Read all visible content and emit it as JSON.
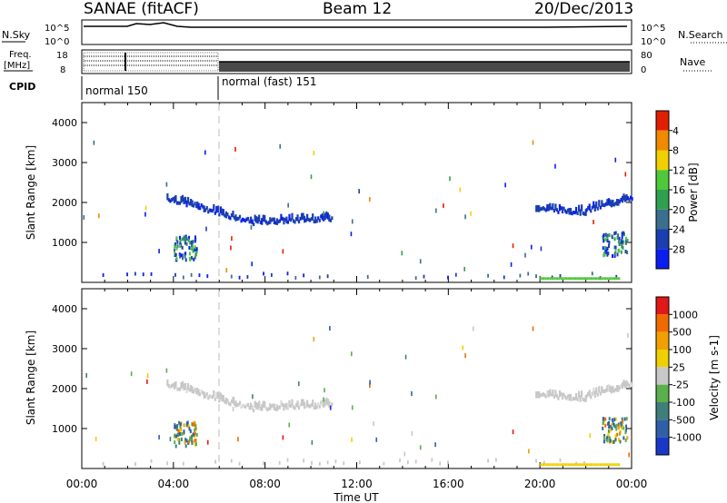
{
  "header": {
    "left_title": "SANAE (fitACF)",
    "center_title": "Beam 12",
    "date": "20/Dec/2013"
  },
  "top_strip": {
    "nsky_label": "N.Sky",
    "nsearch_label": "N.Search",
    "left_ticks": [
      "10^5",
      "10^0"
    ],
    "right_ticks": [
      "10^5",
      "10^0"
    ],
    "freq_label": "Freq.",
    "freq_unit": "[MHz]",
    "freq_ticks": [
      "18",
      "8"
    ],
    "nave_label": "Nave",
    "nave_ticks": [
      "80",
      "0"
    ],
    "cpid_label": "CPID",
    "cpid_modes": [
      "normal 150",
      "normal (fast) 151"
    ]
  },
  "chart_data": [
    {
      "type": "heatmap",
      "name": "power",
      "ylabel": "Slant Range [km]",
      "xlabel": "",
      "ylim": [
        0,
        4500
      ],
      "xlim_hours": [
        0,
        24
      ],
      "yticks": [
        "1000",
        "2000",
        "3000",
        "4000"
      ],
      "colorbar_label": "Power [dB]",
      "colorbar_ticks": [
        "4",
        "8",
        "12",
        "16",
        "20",
        "24",
        "28"
      ],
      "colorbar_colors": [
        "#0a1ef0",
        "#1a3fb0",
        "#3a6f8e",
        "#2fa050",
        "#4fc83a",
        "#f0d000",
        "#f08a00",
        "#e02000"
      ],
      "echo_bands": [
        {
          "t0": 3.7,
          "t1": 5.0,
          "r0": 2150,
          "r1": 1950,
          "level": 1
        },
        {
          "t0": 5.0,
          "t1": 7.4,
          "r0": 1950,
          "r1": 1550,
          "level": 1
        },
        {
          "t0": 7.4,
          "t1": 10.9,
          "r0": 1550,
          "r1": 1650,
          "level": 1
        },
        {
          "t0": 19.8,
          "t1": 22.0,
          "r0": 1900,
          "r1": 1800,
          "level": 1
        },
        {
          "t0": 22.0,
          "t1": 24.0,
          "r0": 1850,
          "r1": 2150,
          "level": 1
        }
      ]
    },
    {
      "type": "heatmap",
      "name": "velocity",
      "ylabel": "Slant Range [km]",
      "xlabel": "Time UT",
      "ylim": [
        0,
        4500
      ],
      "xlim_hours": [
        0,
        24
      ],
      "yticks": [
        "1000",
        "2000",
        "3000",
        "4000"
      ],
      "xticks": [
        "00:00",
        "04:00",
        "08:00",
        "12:00",
        "16:00",
        "20:00",
        "00:00"
      ],
      "colorbar_label": "Velocity [m s-1]",
      "colorbar_ticks": [
        "1000",
        "500",
        "100",
        "25",
        "-25",
        "-100",
        "-500",
        "-1000"
      ],
      "colorbar_colors": [
        "#1a38c8",
        "#2e5fa8",
        "#3e7f7a",
        "#5ab04a",
        "#c8c8c8",
        "#f0d000",
        "#f0a000",
        "#f06a00",
        "#e01818"
      ]
    }
  ]
}
